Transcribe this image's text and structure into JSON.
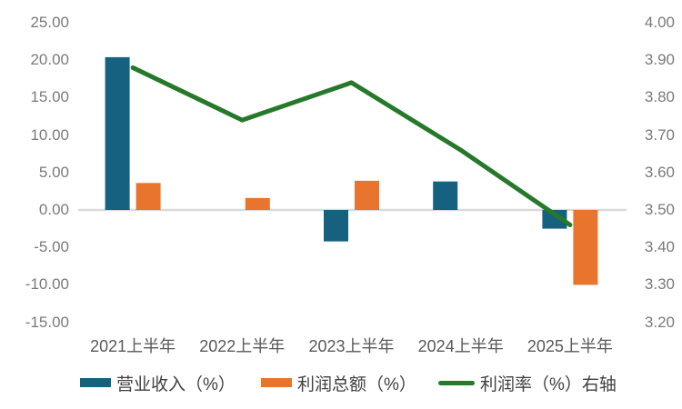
{
  "chart_data": {
    "type": "combo",
    "title": "",
    "categories": [
      "2021上半年",
      "2022上半年",
      "2023上半年",
      "2024上半年",
      "2025上半年"
    ],
    "series": [
      {
        "name": "营业收入（%）",
        "type": "bar",
        "axis": "left",
        "color": "#166080",
        "values": [
          20.4,
          0,
          -4.2,
          3.8,
          -2.5
        ]
      },
      {
        "name": "利润总额（%）",
        "type": "bar",
        "axis": "left",
        "color": "#E8742D",
        "values": [
          3.6,
          1.6,
          3.9,
          0,
          -10.0
        ]
      },
      {
        "name": "利润率（%）右轴",
        "type": "line",
        "axis": "right",
        "color": "#26792A",
        "values": [
          3.88,
          3.74,
          3.84,
          3.66,
          3.46
        ]
      }
    ],
    "left_axis": {
      "min": -15,
      "max": 25,
      "step": 5,
      "tick_labels": [
        "25.00",
        "20.00",
        "15.00",
        "10.00",
        "5.00",
        "0.00",
        "-5.00",
        "-10.00",
        "-15.00"
      ]
    },
    "right_axis": {
      "min": 3.2,
      "max": 4.0,
      "step": 0.1,
      "tick_labels": [
        "4.00",
        "3.90",
        "3.80",
        "3.70",
        "3.60",
        "3.50",
        "3.40",
        "3.30",
        "3.20"
      ]
    },
    "grid": "zero-baseline-only",
    "legend_position": "bottom",
    "background_color": "#FFFFFF",
    "zero_line_color": "#D9D9D9",
    "axis_text_color": "#7A7A7A",
    "category_text_color": "#595959",
    "legend_text_color": "#404040"
  },
  "legend": {
    "items": [
      {
        "label": "营业收入（%）",
        "swatch": "bar",
        "color": "#166080"
      },
      {
        "label": "利润总额（%）",
        "swatch": "bar",
        "color": "#E8742D"
      },
      {
        "label": "利润率（%）右轴",
        "swatch": "line",
        "color": "#26792A"
      }
    ]
  }
}
